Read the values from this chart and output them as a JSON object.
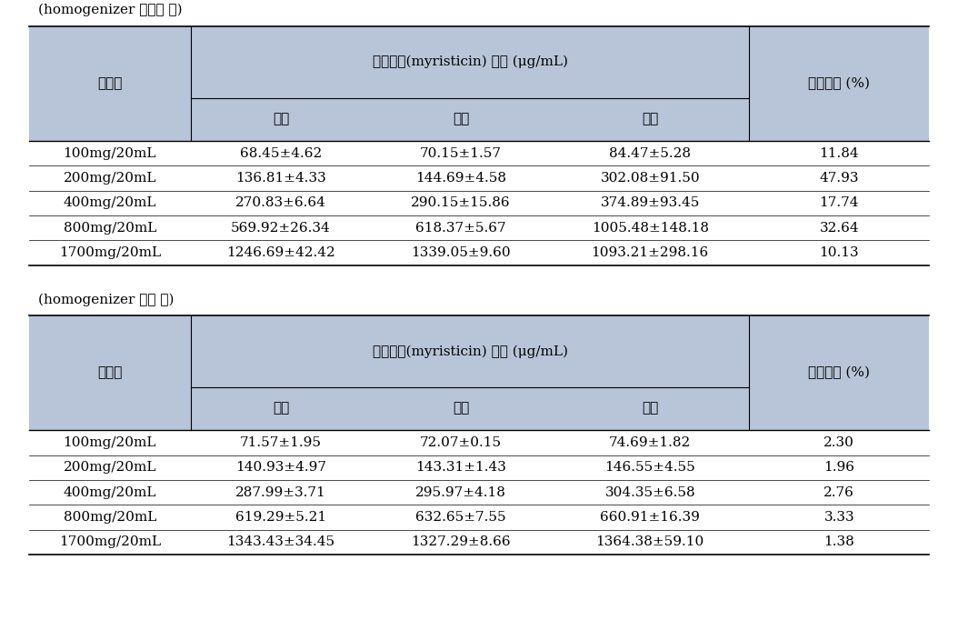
{
  "title1": "(homogenizer 미사용 시)",
  "title2": "(homogenizer 사용 시)",
  "header_col1": "시험군",
  "header_col2": "지표성분(myristicin) 함량 (μg/mL)",
  "header_col3": "변동계수 (%)",
  "header_sub1": "상층",
  "header_sub2": "중층",
  "header_sub3": "하층",
  "table1_rows": [
    [
      "100mg/20mL",
      "68.45±4.62",
      "70.15±1.57",
      "84.47±5.28",
      "11.84"
    ],
    [
      "200mg/20mL",
      "136.81±4.33",
      "144.69±4.58",
      "302.08±91.50",
      "47.93"
    ],
    [
      "400mg/20mL",
      "270.83±6.64",
      "290.15±15.86",
      "374.89±93.45",
      "17.74"
    ],
    [
      "800mg/20mL",
      "569.92±26.34",
      "618.37±5.67",
      "1005.48±148.18",
      "32.64"
    ],
    [
      "1700mg/20mL",
      "1246.69±42.42",
      "1339.05±9.60",
      "1093.21±298.16",
      "10.13"
    ]
  ],
  "table2_rows": [
    [
      "100mg/20mL",
      "71.57±1.95",
      "72.07±0.15",
      "74.69±1.82",
      "2.30"
    ],
    [
      "200mg/20mL",
      "140.93±4.97",
      "143.31±1.43",
      "146.55±4.55",
      "1.96"
    ],
    [
      "400mg/20mL",
      "287.99±3.71",
      "295.97±4.18",
      "304.35±6.58",
      "2.76"
    ],
    [
      "800mg/20mL",
      "619.29±5.21",
      "632.65±7.55",
      "660.91±16.39",
      "3.33"
    ],
    [
      "1700mg/20mL",
      "1343.43±34.45",
      "1327.29±8.66",
      "1364.38±59.10",
      "1.38"
    ]
  ],
  "header_bg": "#b8c4d8",
  "bg_color": "#ffffff",
  "font_size": 11,
  "title_font_size": 11
}
